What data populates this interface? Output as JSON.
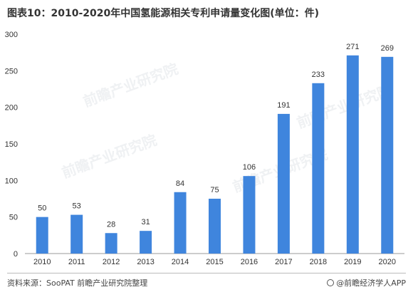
{
  "title": "图表10：2010-2020年中国氢能源相关专利申请量变化图(单位：件)",
  "source": "资料来源：SooPAT 前瞻产业研究院整理",
  "brand": "@前瞻经济学人APP",
  "watermark_text": "前瞻产业研究院",
  "colors": {
    "bar": "#3f85dd",
    "axis": "#999999"
  },
  "chart_data": {
    "type": "bar",
    "title": "图表10：2010-2020年中国氢能源相关专利申请量变化图(单位：件)",
    "xlabel": "",
    "ylabel": "",
    "categories": [
      "2010",
      "2011",
      "2012",
      "2013",
      "2014",
      "2015",
      "2016",
      "2017",
      "2018",
      "2019",
      "2020"
    ],
    "values": [
      50,
      53,
      28,
      31,
      84,
      75,
      106,
      191,
      233,
      271,
      269
    ],
    "ylim": [
      0,
      300
    ],
    "yticks": [
      0,
      50,
      100,
      150,
      200,
      250,
      300
    ],
    "grid": false,
    "data_labels": true
  }
}
